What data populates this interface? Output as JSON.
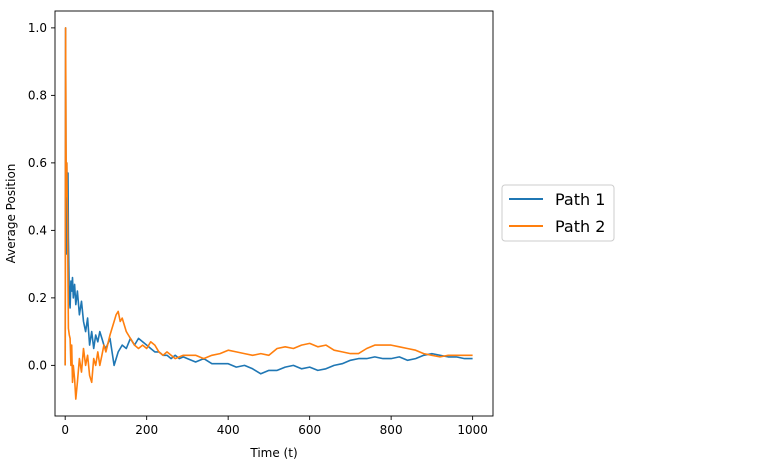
{
  "chart_data": {
    "type": "line",
    "title": "",
    "xlabel": "Time (t)",
    "ylabel": "Average Position",
    "xlim": [
      -25,
      1050
    ],
    "ylim": [
      -0.15,
      1.05
    ],
    "xticks": [
      0,
      200,
      400,
      600,
      800,
      1000
    ],
    "yticks": [
      0.0,
      0.2,
      0.4,
      0.6,
      0.8,
      1.0
    ],
    "xtick_labels": [
      "0",
      "200",
      "400",
      "600",
      "800",
      "1000"
    ],
    "ytick_labels": [
      "0.0",
      "0.2",
      "0.4",
      "0.6",
      "0.8",
      "1.0"
    ],
    "grid": false,
    "legend_position": "outside-right",
    "series": [
      {
        "name": "Path 1",
        "color": "#1f77b4",
        "x": [
          0,
          1,
          2,
          3,
          4,
          5,
          6,
          7,
          8,
          10,
          12,
          14,
          16,
          18,
          20,
          23,
          26,
          30,
          35,
          40,
          45,
          50,
          55,
          60,
          65,
          70,
          75,
          80,
          85,
          90,
          95,
          100,
          110,
          120,
          130,
          140,
          150,
          160,
          170,
          180,
          190,
          200,
          210,
          220,
          230,
          240,
          250,
          260,
          270,
          280,
          290,
          300,
          320,
          340,
          360,
          380,
          400,
          420,
          440,
          460,
          480,
          500,
          520,
          540,
          560,
          580,
          600,
          620,
          640,
          660,
          680,
          700,
          720,
          740,
          760,
          780,
          800,
          820,
          840,
          860,
          880,
          900,
          920,
          940,
          960,
          980,
          1000
        ],
        "y": [
          0.0,
          1.0,
          0.5,
          0.33,
          0.6,
          0.4,
          0.5,
          0.57,
          0.38,
          0.2,
          0.17,
          0.25,
          0.22,
          0.26,
          0.2,
          0.24,
          0.18,
          0.22,
          0.15,
          0.19,
          0.13,
          0.1,
          0.14,
          0.06,
          0.1,
          0.05,
          0.09,
          0.07,
          0.1,
          0.08,
          0.06,
          0.05,
          0.08,
          0.0,
          0.04,
          0.06,
          0.05,
          0.08,
          0.06,
          0.08,
          0.07,
          0.06,
          0.05,
          0.04,
          0.04,
          0.03,
          0.03,
          0.02,
          0.03,
          0.02,
          0.025,
          0.02,
          0.01,
          0.02,
          0.005,
          0.005,
          0.005,
          -0.005,
          0.0,
          -0.01,
          -0.025,
          -0.015,
          -0.015,
          -0.005,
          0.0,
          -0.01,
          -0.005,
          -0.015,
          -0.01,
          0.0,
          0.005,
          0.015,
          0.02,
          0.02,
          0.025,
          0.02,
          0.02,
          0.025,
          0.015,
          0.02,
          0.03,
          0.035,
          0.03,
          0.025,
          0.025,
          0.02,
          0.02
        ]
      },
      {
        "name": "Path 2",
        "color": "#ff7f0e",
        "x": [
          0,
          1,
          2,
          3,
          4,
          5,
          6,
          7,
          8,
          10,
          12,
          14,
          16,
          18,
          20,
          23,
          26,
          30,
          35,
          40,
          45,
          50,
          55,
          60,
          65,
          70,
          75,
          80,
          85,
          90,
          95,
          100,
          110,
          120,
          125,
          130,
          135,
          140,
          150,
          160,
          170,
          180,
          190,
          200,
          210,
          220,
          230,
          240,
          250,
          260,
          270,
          280,
          290,
          300,
          320,
          340,
          360,
          380,
          400,
          420,
          440,
          460,
          480,
          500,
          520,
          540,
          560,
          580,
          600,
          620,
          640,
          660,
          680,
          700,
          720,
          740,
          760,
          780,
          800,
          820,
          840,
          860,
          880,
          900,
          920,
          940,
          960,
          980,
          1000
        ],
        "y": [
          0.0,
          1.0,
          0.67,
          0.5,
          0.6,
          0.5,
          0.43,
          0.25,
          0.11,
          0.09,
          0.08,
          0.0,
          0.06,
          -0.05,
          0.0,
          -0.04,
          -0.1,
          -0.05,
          0.02,
          -0.02,
          0.05,
          0.0,
          0.03,
          -0.03,
          -0.05,
          0.02,
          0.0,
          0.04,
          0.0,
          0.03,
          0.06,
          0.04,
          0.09,
          0.13,
          0.15,
          0.16,
          0.13,
          0.14,
          0.1,
          0.08,
          0.06,
          0.05,
          0.06,
          0.05,
          0.07,
          0.06,
          0.04,
          0.03,
          0.04,
          0.03,
          0.02,
          0.025,
          0.03,
          0.03,
          0.03,
          0.02,
          0.03,
          0.035,
          0.045,
          0.04,
          0.035,
          0.03,
          0.035,
          0.03,
          0.05,
          0.055,
          0.05,
          0.06,
          0.065,
          0.055,
          0.06,
          0.045,
          0.04,
          0.035,
          0.035,
          0.05,
          0.06,
          0.06,
          0.06,
          0.055,
          0.05,
          0.045,
          0.035,
          0.03,
          0.025,
          0.03,
          0.03,
          0.03,
          0.03
        ]
      }
    ]
  }
}
